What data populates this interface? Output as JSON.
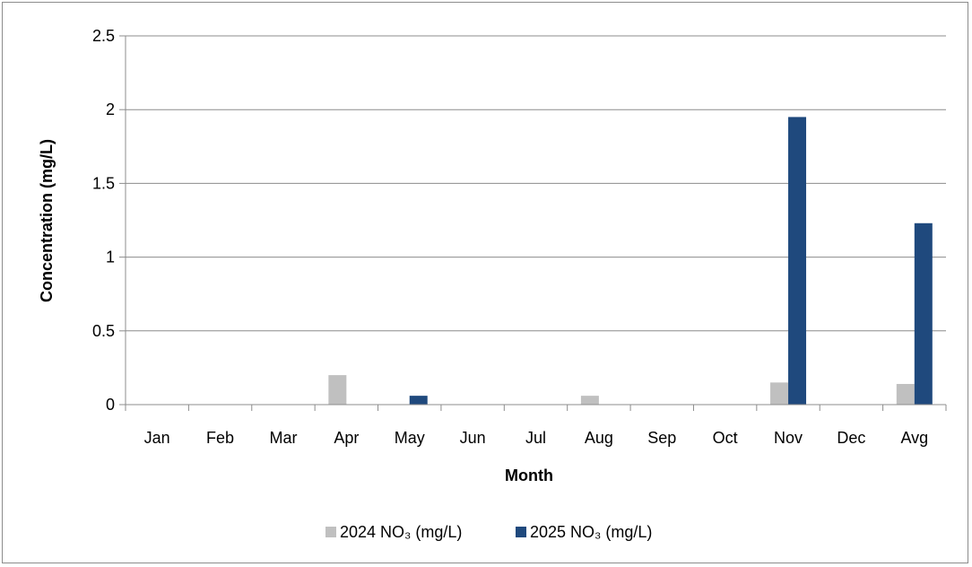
{
  "chart_data": {
    "type": "bar",
    "categories": [
      "Jan",
      "Feb",
      "Mar",
      "Apr",
      "May",
      "Jun",
      "Jul",
      "Aug",
      "Sep",
      "Oct",
      "Nov",
      "Dec",
      "Avg"
    ],
    "series": [
      {
        "name": "2024 NO₃ (mg/L)",
        "color": "#c0c0c0",
        "values": [
          0,
          0,
          0,
          0.2,
          0,
          0,
          0,
          0.06,
          0,
          0,
          0.15,
          0,
          0.14
        ]
      },
      {
        "name": "2025 NO₃ (mg/L)",
        "color": "#1f497d",
        "values": [
          0,
          0,
          0,
          0,
          0.06,
          0,
          0,
          0,
          0,
          0,
          1.95,
          0,
          1.23
        ]
      }
    ],
    "title": "",
    "xlabel": "Month",
    "ylabel": "Concentration (mg/L)",
    "ylim": [
      0,
      2.5
    ],
    "yticks": [
      "0",
      "0.5",
      "1",
      "1.5",
      "2",
      "2.5"
    ],
    "grid": true,
    "legend": "bottom"
  }
}
